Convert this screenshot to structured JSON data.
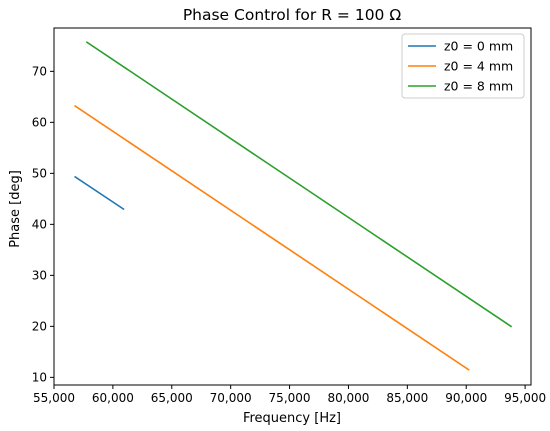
{
  "chart_data": {
    "type": "line",
    "title": "Phase Control for R = 100 Ω",
    "xlabel": "Frequency [Hz]",
    "ylabel": "Phase [deg]",
    "xlim": [
      55000,
      95500
    ],
    "ylim": [
      8.5,
      78.5
    ],
    "xticks": [
      55000,
      60000,
      65000,
      70000,
      75000,
      80000,
      85000,
      90000,
      95000
    ],
    "xtick_labels": [
      "55,000",
      "60,000",
      "65,000",
      "70,000",
      "75,000",
      "80,000",
      "85,000",
      "90,000",
      "95,000"
    ],
    "yticks": [
      10,
      20,
      30,
      40,
      50,
      60,
      70
    ],
    "ytick_labels": [
      "10",
      "20",
      "30",
      "40",
      "50",
      "60",
      "70"
    ],
    "grid": false,
    "legend_position": "top-right",
    "series": [
      {
        "name": "z0 = 0 mm",
        "color": "#1f77b4",
        "x": [
          56800,
          60900
        ],
        "y": [
          49.3,
          43.0
        ]
      },
      {
        "name": "z0 = 4 mm",
        "color": "#ff7f0e",
        "x": [
          56800,
          90200
        ],
        "y": [
          63.2,
          11.5
        ]
      },
      {
        "name": "z0 = 8 mm",
        "color": "#2ca02c",
        "x": [
          57800,
          93800
        ],
        "y": [
          75.7,
          20.0
        ]
      }
    ]
  }
}
